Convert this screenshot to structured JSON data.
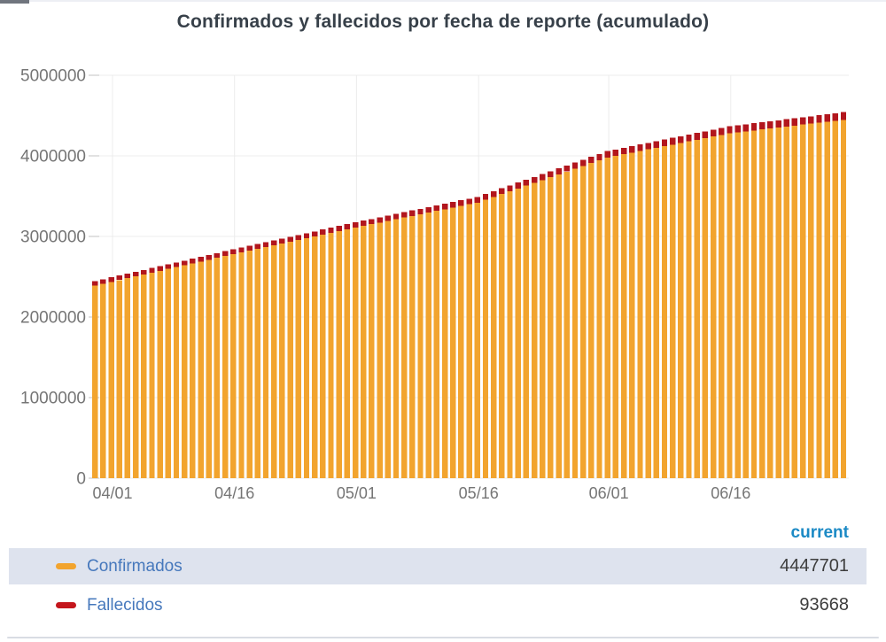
{
  "page": {
    "title": "Confirmados y fallecidos por fecha de reporte (acumulado)"
  },
  "colors": {
    "confirmados": "#F2A42E",
    "fallecidos_bar": "#B2161D",
    "fallecidos_marker": "#C4161C",
    "axis_text": "#757575",
    "gridline": "#ececec",
    "tick": "#c3c3c3",
    "legend_label": "#4678bc",
    "legend_header": "#1c8ac5",
    "legend_value": "#3d3d3d",
    "highlight_row_bg": "#dee3ee",
    "title_text": "#374049"
  },
  "chart_data": {
    "type": "bar",
    "stacked": true,
    "title": "Confirmados y fallecidos por fecha de reporte (acumulado)",
    "xlabel": "",
    "ylabel": "",
    "ylim": [
      0,
      5000000
    ],
    "grid": true,
    "legend_position": "bottom",
    "x": [
      "03/30",
      "03/31",
      "04/01",
      "04/02",
      "04/03",
      "04/04",
      "04/05",
      "04/06",
      "04/07",
      "04/08",
      "04/09",
      "04/10",
      "04/11",
      "04/12",
      "04/13",
      "04/14",
      "04/15",
      "04/16",
      "04/17",
      "04/18",
      "04/19",
      "04/20",
      "04/21",
      "04/22",
      "04/23",
      "04/24",
      "04/25",
      "04/26",
      "04/27",
      "04/28",
      "04/29",
      "04/30",
      "05/01",
      "05/02",
      "05/03",
      "05/04",
      "05/05",
      "05/06",
      "05/07",
      "05/08",
      "05/09",
      "05/10",
      "05/11",
      "05/12",
      "05/13",
      "05/14",
      "05/15",
      "05/16",
      "05/17",
      "05/18",
      "05/19",
      "05/20",
      "05/21",
      "05/22",
      "05/23",
      "05/24",
      "05/25",
      "05/26",
      "05/27",
      "05/28",
      "05/29",
      "05/30",
      "05/31",
      "06/01",
      "06/02",
      "06/03",
      "06/04",
      "06/05",
      "06/06",
      "06/07",
      "06/08",
      "06/09",
      "06/10",
      "06/11",
      "06/12",
      "06/13",
      "06/14",
      "06/15",
      "06/16",
      "06/17",
      "06/18",
      "06/19",
      "06/20",
      "06/21",
      "06/22",
      "06/23",
      "06/24",
      "06/25",
      "06/26",
      "06/27",
      "06/28",
      "06/29",
      "06/30"
    ],
    "x_tick_labels": [
      "04/01",
      "04/16",
      "05/01",
      "05/16",
      "06/01",
      "06/16"
    ],
    "x_tick_indices": [
      2,
      17,
      32,
      47,
      63,
      78
    ],
    "y_tick_values": [
      0,
      1000000,
      2000000,
      3000000,
      4000000,
      5000000
    ],
    "y_tick_labels": [
      "0",
      "1000000",
      "2000000",
      "3000000",
      "4000000",
      "5000000"
    ],
    "series": [
      {
        "name": "Confirmados",
        "color": "#F2A42E",
        "values": [
          2390000,
          2412941,
          2435882,
          2458824,
          2481765,
          2504706,
          2527647,
          2550588,
          2573529,
          2596471,
          2619412,
          2642353,
          2665294,
          2688235,
          2711176,
          2734118,
          2757059,
          2780000,
          2802000,
          2824000,
          2846000,
          2868000,
          2890000,
          2912000,
          2934000,
          2956000,
          2978000,
          3000000,
          3022000,
          3044000,
          3066000,
          3088000,
          3110000,
          3130667,
          3151333,
          3172000,
          3192667,
          3213333,
          3234000,
          3254667,
          3275333,
          3296000,
          3316667,
          3337333,
          3358000,
          3378667,
          3399333,
          3420000,
          3455000,
          3490000,
          3525000,
          3560000,
          3595000,
          3630000,
          3665000,
          3700000,
          3735000,
          3770000,
          3805000,
          3840000,
          3875000,
          3910000,
          3945000,
          3980000,
          4000000,
          4020000,
          4040000,
          4060000,
          4080000,
          4100000,
          4120000,
          4140000,
          4160000,
          4180000,
          4200000,
          4220000,
          4240000,
          4260000,
          4280000,
          4291979,
          4303957,
          4315936,
          4327914,
          4339893,
          4351871,
          4363850,
          4375829,
          4387807,
          4399786,
          4411764,
          4423743,
          4435722,
          4447701
        ]
      },
      {
        "name": "Fallecidos",
        "color": "#B2161D",
        "values": [
          55800,
          56000,
          56200,
          56400,
          56600,
          56800,
          57000,
          57200,
          57400,
          57600,
          57800,
          58000,
          58200,
          58400,
          58600,
          58800,
          59000,
          59200,
          59573,
          59947,
          60320,
          60693,
          61067,
          61440,
          61813,
          62187,
          62560,
          62933,
          63307,
          63680,
          64053,
          64427,
          64800,
          65180,
          65560,
          65940,
          66320,
          66700,
          67080,
          67460,
          67840,
          68220,
          68600,
          68980,
          69360,
          69740,
          70120,
          70500,
          71006,
          71513,
          72019,
          72525,
          73031,
          73538,
          74044,
          74550,
          75056,
          75563,
          76069,
          76575,
          77081,
          77588,
          78094,
          78600,
          79133,
          79667,
          80200,
          80733,
          81267,
          81800,
          82333,
          82867,
          83400,
          83933,
          84467,
          85000,
          85533,
          86067,
          86600,
          87105,
          87610,
          88115,
          88619,
          89124,
          89629,
          90134,
          90639,
          91144,
          91649,
          92154,
          92658,
          93163,
          93668
        ]
      }
    ]
  },
  "legend": {
    "value_header": "current",
    "rows": [
      {
        "label": "Confirmados",
        "value": "4447701",
        "marker_color": "#F2A42E",
        "highlighted": true
      },
      {
        "label": "Fallecidos",
        "value": "93668",
        "marker_color": "#C4161C",
        "highlighted": false
      }
    ]
  }
}
